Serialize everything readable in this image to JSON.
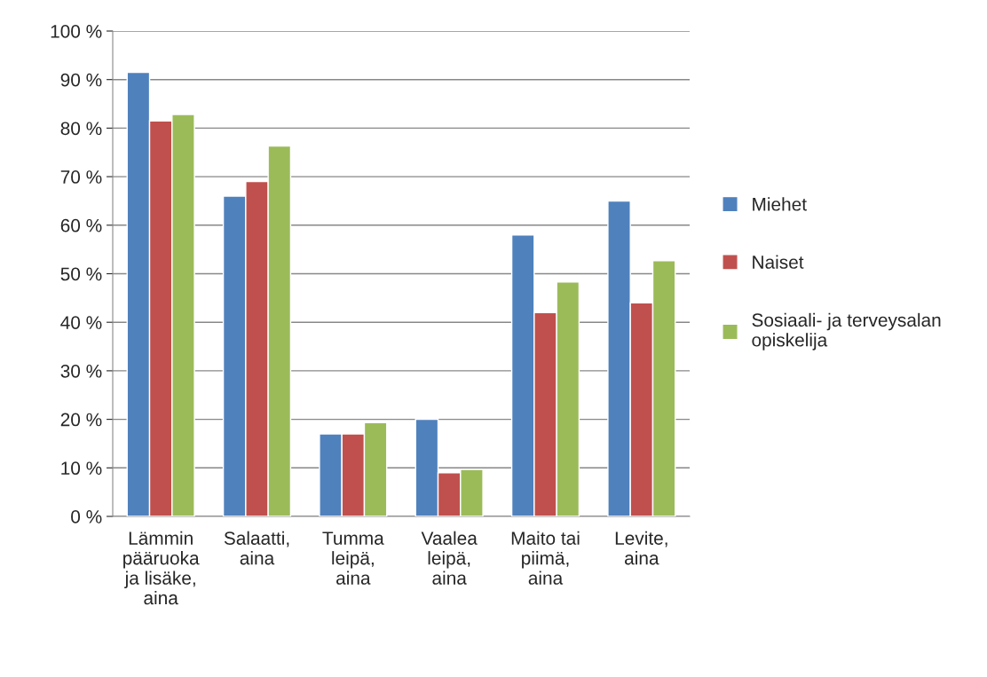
{
  "chart_data": {
    "type": "bar",
    "categories": [
      "Lämmin\npääruoka\nja lisäke,\naina",
      "Salaatti,\naina",
      "Tumma\nleipä,\naina",
      "Vaalea\nleipä,\naina",
      "Maito tai\npiimä,\naina",
      "Levite,\naina"
    ],
    "series": [
      {
        "name": "Miehet",
        "color": "#4f81bd",
        "values": [
          91.5,
          66,
          17,
          20,
          58,
          65
        ]
      },
      {
        "name": "Naiset",
        "color": "#c0504d",
        "values": [
          81.5,
          69,
          17,
          9,
          42,
          44
        ]
      },
      {
        "name": "Sosiaali- ja terveysalan\nopiskelija",
        "color": "#9bbb59",
        "values": [
          82.8,
          76.3,
          19.3,
          9.7,
          48.3,
          52.7
        ]
      }
    ],
    "ylim": [
      0,
      100
    ],
    "yticks": [
      {
        "value": 0,
        "label": "0 %"
      },
      {
        "value": 10,
        "label": "10 %"
      },
      {
        "value": 20,
        "label": "20 %"
      },
      {
        "value": 30,
        "label": "30 %"
      },
      {
        "value": 40,
        "label": "40 %"
      },
      {
        "value": 50,
        "label": "50 %"
      },
      {
        "value": 60,
        "label": "60 %"
      },
      {
        "value": 70,
        "label": "70 %"
      },
      {
        "value": 80,
        "label": "80 %"
      },
      {
        "value": 90,
        "label": "90 %"
      },
      {
        "value": 100,
        "label": "100 %"
      }
    ],
    "grid": "y",
    "legend": "right"
  }
}
